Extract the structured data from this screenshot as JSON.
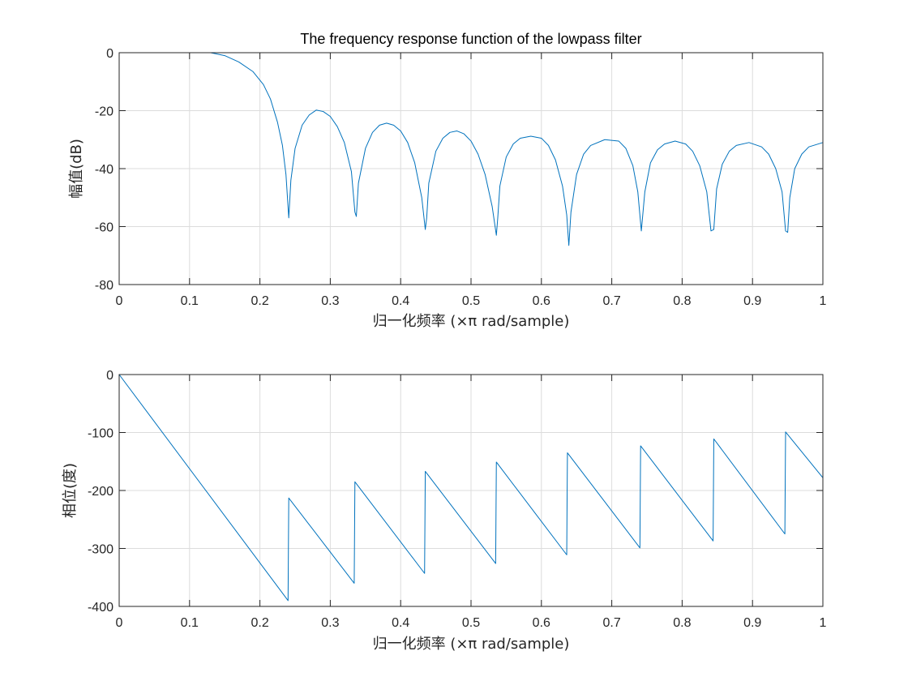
{
  "chart_data": [
    {
      "type": "line",
      "title": "The frequency response function of the lowpass filter",
      "xlabel": "归一化频率 (×π rad/sample)",
      "ylabel": "幅值(dB)",
      "xlim": [
        0,
        1
      ],
      "ylim": [
        -80,
        0
      ],
      "xticks": [
        0,
        0.1,
        0.2,
        0.3,
        0.4,
        0.5,
        0.6,
        0.7,
        0.8,
        0.9,
        1
      ],
      "xtick_labels": [
        "0",
        "0.1",
        "0.2",
        "0.3",
        "0.4",
        "0.5",
        "0.6",
        "0.7",
        "0.8",
        "0.9",
        "1"
      ],
      "yticks": [
        -80,
        -60,
        -40,
        -20,
        0
      ],
      "ytick_labels": [
        "-80",
        "-60",
        "-40",
        "-20",
        "0"
      ],
      "grid": true,
      "color": "#0072BD",
      "series": [
        {
          "x": [
            0,
            0.03,
            0.06,
            0.09,
            0.11,
            0.13,
            0.15,
            0.17,
            0.19,
            0.205,
            0.215,
            0.225,
            0.232,
            0.237,
            0.241,
            0.244,
            0.25,
            0.26,
            0.27,
            0.28,
            0.29,
            0.3,
            0.31,
            0.32,
            0.33,
            0.335,
            0.337,
            0.34,
            0.35,
            0.36,
            0.37,
            0.38,
            0.39,
            0.4,
            0.41,
            0.42,
            0.43,
            0.435,
            0.437,
            0.44,
            0.45,
            0.46,
            0.47,
            0.48,
            0.49,
            0.5,
            0.51,
            0.52,
            0.53,
            0.536,
            0.538,
            0.541,
            0.55,
            0.56,
            0.57,
            0.585,
            0.6,
            0.61,
            0.62,
            0.63,
            0.636,
            0.639,
            0.642,
            0.65,
            0.66,
            0.67,
            0.69,
            0.71,
            0.72,
            0.73,
            0.737,
            0.742,
            0.747,
            0.755,
            0.765,
            0.775,
            0.79,
            0.805,
            0.815,
            0.825,
            0.835,
            0.841,
            0.845,
            0.849,
            0.857,
            0.867,
            0.877,
            0.895,
            0.913,
            0.923,
            0.933,
            0.942,
            0.947,
            0.95,
            0.953,
            0.96,
            0.97,
            0.98,
            1.0
          ],
          "values": [
            0,
            0.5,
            1.0,
            1.2,
            1.0,
            0.3,
            -1.0,
            -3.2,
            -6.5,
            -11,
            -16,
            -24,
            -32,
            -42,
            -57,
            -44,
            -33,
            -25,
            -21.5,
            -19.8,
            -20.3,
            -22,
            -25.5,
            -31,
            -41,
            -55,
            -56.5,
            -45,
            -33,
            -27.5,
            -25,
            -24.3,
            -25,
            -27,
            -31,
            -38,
            -50,
            -61,
            -57,
            -45,
            -34,
            -29.5,
            -27.5,
            -27,
            -28,
            -30.5,
            -35,
            -42,
            -53,
            -63,
            -57,
            -46,
            -36,
            -31.5,
            -29.5,
            -28.8,
            -29.5,
            -32,
            -37,
            -46,
            -56,
            -66.5,
            -55,
            -42,
            -35,
            -32,
            -30,
            -30.5,
            -33,
            -39,
            -48,
            -61.5,
            -48,
            -38,
            -33.5,
            -31.5,
            -30.5,
            -31.5,
            -34,
            -39,
            -48,
            -61.5,
            -61,
            -47,
            -38.5,
            -34,
            -32,
            -31,
            -32.5,
            -35,
            -40,
            -48,
            -61.5,
            -62,
            -50,
            -40,
            -35,
            -32.5,
            -31
          ]
        }
      ]
    },
    {
      "type": "line",
      "title": "",
      "xlabel": "归一化频率 (×π rad/sample)",
      "ylabel": "相位(度)",
      "xlim": [
        0,
        1
      ],
      "ylim": [
        -400,
        0
      ],
      "xticks": [
        0,
        0.1,
        0.2,
        0.3,
        0.4,
        0.5,
        0.6,
        0.7,
        0.8,
        0.9,
        1
      ],
      "xtick_labels": [
        "0",
        "0.1",
        "0.2",
        "0.3",
        "0.4",
        "0.5",
        "0.6",
        "0.7",
        "0.8",
        "0.9",
        "1"
      ],
      "yticks": [
        -400,
        -300,
        -200,
        -100,
        0
      ],
      "ytick_labels": [
        "-400",
        "-300",
        "-200",
        "-100",
        "0"
      ],
      "grid": true,
      "color": "#0072BD",
      "series": [
        {
          "x": [
            0,
            0.24,
            0.2405,
            0.241,
            0.334,
            0.3345,
            0.335,
            0.434,
            0.4345,
            0.435,
            0.535,
            0.5355,
            0.536,
            0.636,
            0.6365,
            0.637,
            0.74,
            0.7405,
            0.741,
            0.844,
            0.8445,
            0.845,
            0.946,
            0.9465,
            0.947,
            1.0
          ],
          "values": [
            0,
            -390,
            -300,
            -213,
            -360,
            -270,
            -185,
            -343,
            -255,
            -167,
            -326,
            -240,
            -151,
            -311,
            -220,
            -135,
            -299,
            -210,
            -123,
            -287,
            -200,
            -111,
            -275,
            -185,
            -99,
            -178
          ]
        }
      ]
    }
  ]
}
